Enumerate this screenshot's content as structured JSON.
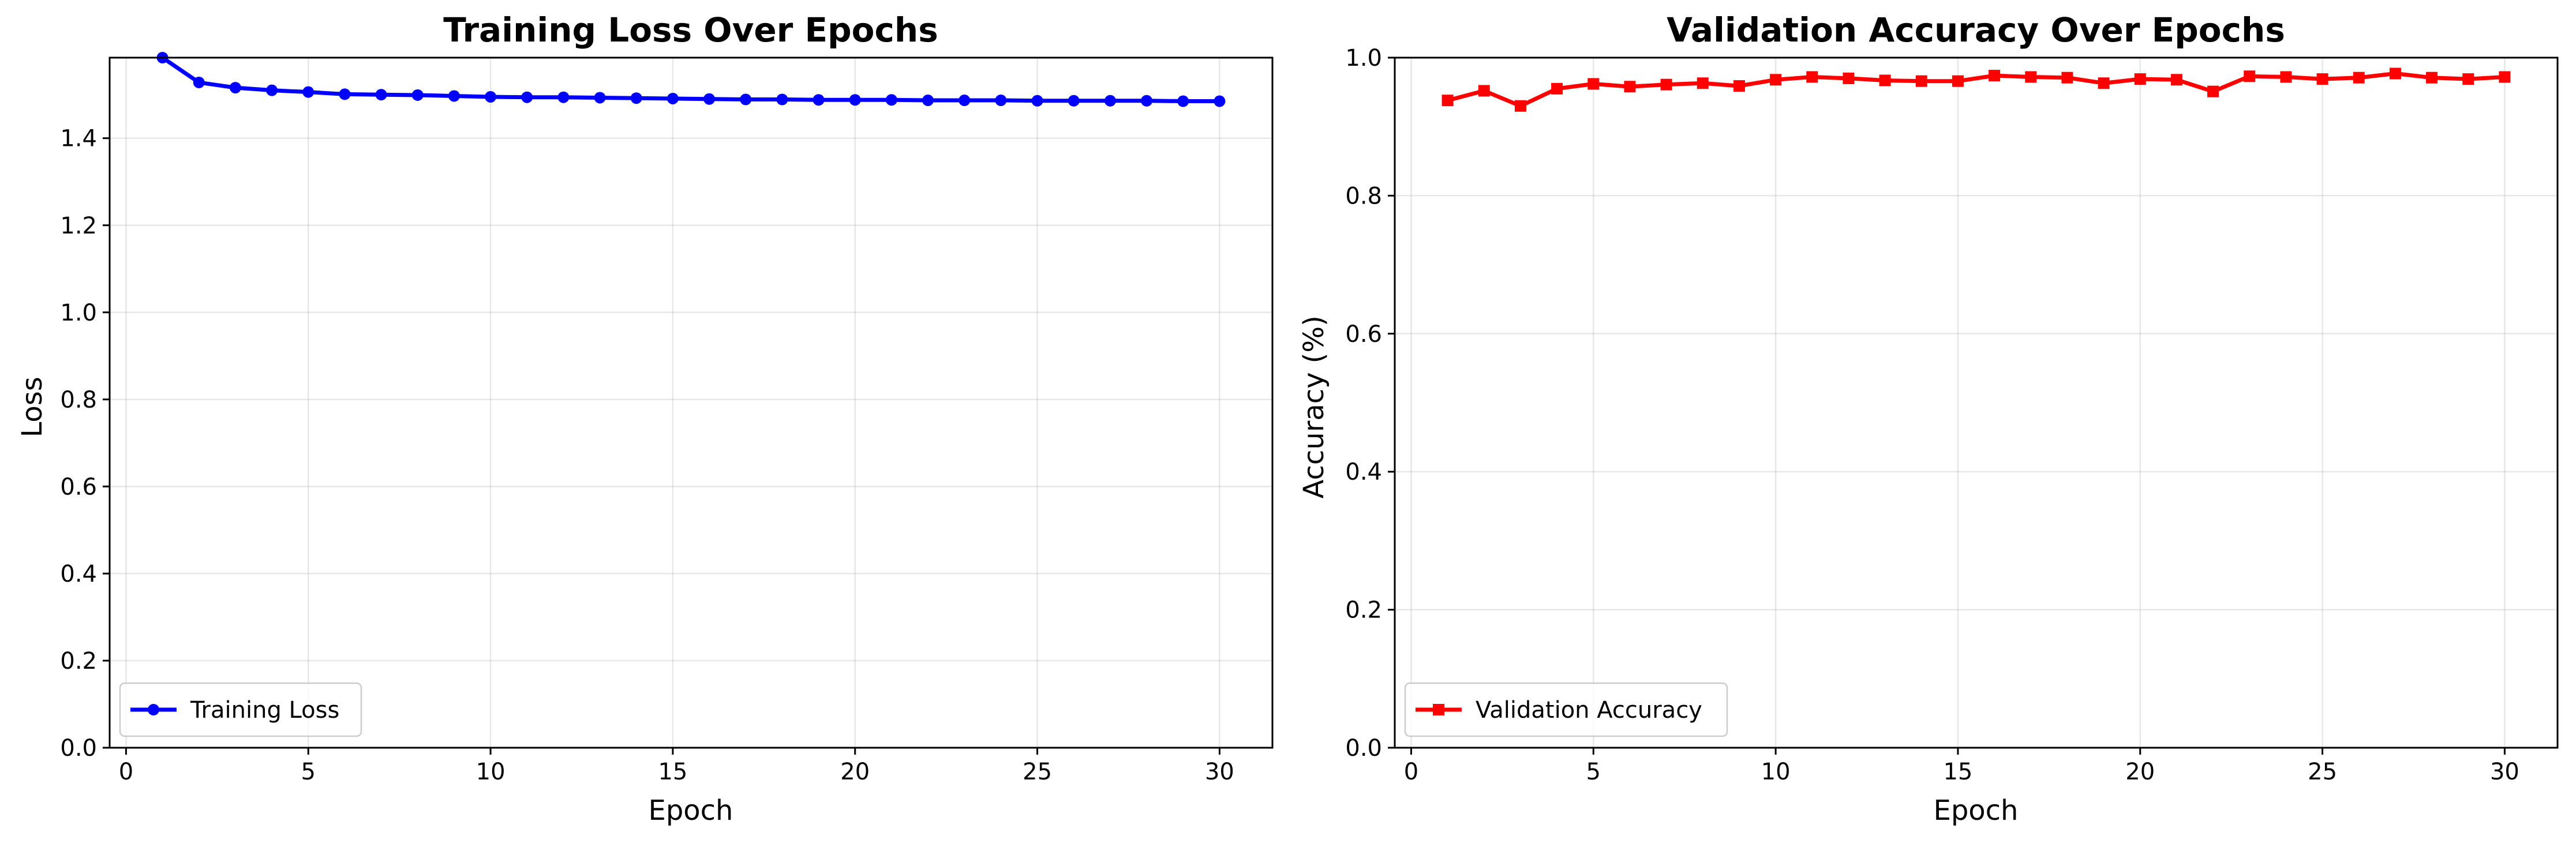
{
  "chart_data": [
    {
      "type": "line",
      "title": "Training Loss Over Epochs",
      "xlabel": "Epoch",
      "ylabel": "Loss",
      "xlim": [
        -0.45,
        31.45
      ],
      "ylim": [
        0.0,
        1.585
      ],
      "xticks": [
        0,
        5,
        10,
        15,
        20,
        25,
        30
      ],
      "yticks": [
        0.0,
        0.2,
        0.4,
        0.6,
        0.8,
        1.0,
        1.2,
        1.4
      ],
      "tick_decimals": 1,
      "grid": true,
      "legend_position": "lower-left",
      "series": [
        {
          "name": "Training Loss",
          "color": "#0000ff",
          "marker": "circle",
          "x": [
            1,
            2,
            3,
            4,
            5,
            6,
            7,
            8,
            9,
            10,
            11,
            12,
            13,
            14,
            15,
            16,
            17,
            18,
            19,
            20,
            21,
            22,
            23,
            24,
            25,
            26,
            27,
            28,
            29,
            30
          ],
          "values": [
            1.585,
            1.528,
            1.516,
            1.51,
            1.506,
            1.501,
            1.5,
            1.499,
            1.497,
            1.495,
            1.494,
            1.494,
            1.493,
            1.492,
            1.491,
            1.49,
            1.489,
            1.489,
            1.488,
            1.488,
            1.488,
            1.487,
            1.487,
            1.487,
            1.486,
            1.486,
            1.486,
            1.486,
            1.485,
            1.485
          ]
        }
      ]
    },
    {
      "type": "line",
      "title": "Validation Accuracy Over Epochs",
      "xlabel": "Epoch",
      "ylabel": "Accuracy (%)",
      "xlim": [
        -0.45,
        31.45
      ],
      "ylim": [
        0.0,
        1.0
      ],
      "xticks": [
        0,
        5,
        10,
        15,
        20,
        25,
        30
      ],
      "yticks": [
        0.0,
        0.2,
        0.4,
        0.6,
        0.8,
        1.0
      ],
      "tick_decimals": 1,
      "grid": true,
      "legend_position": "lower-left",
      "series": [
        {
          "name": "Validation Accuracy",
          "color": "#ff0000",
          "marker": "square",
          "x": [
            1,
            2,
            3,
            4,
            5,
            6,
            7,
            8,
            9,
            10,
            11,
            12,
            13,
            14,
            15,
            16,
            17,
            18,
            19,
            20,
            21,
            22,
            23,
            24,
            25,
            26,
            27,
            28,
            29,
            30
          ],
          "values": [
            0.938,
            0.952,
            0.93,
            0.955,
            0.962,
            0.958,
            0.961,
            0.963,
            0.959,
            0.968,
            0.972,
            0.97,
            0.967,
            0.966,
            0.966,
            0.974,
            0.972,
            0.971,
            0.963,
            0.969,
            0.968,
            0.951,
            0.973,
            0.972,
            0.969,
            0.971,
            0.977,
            0.971,
            0.969,
            0.972
          ]
        }
      ]
    }
  ]
}
